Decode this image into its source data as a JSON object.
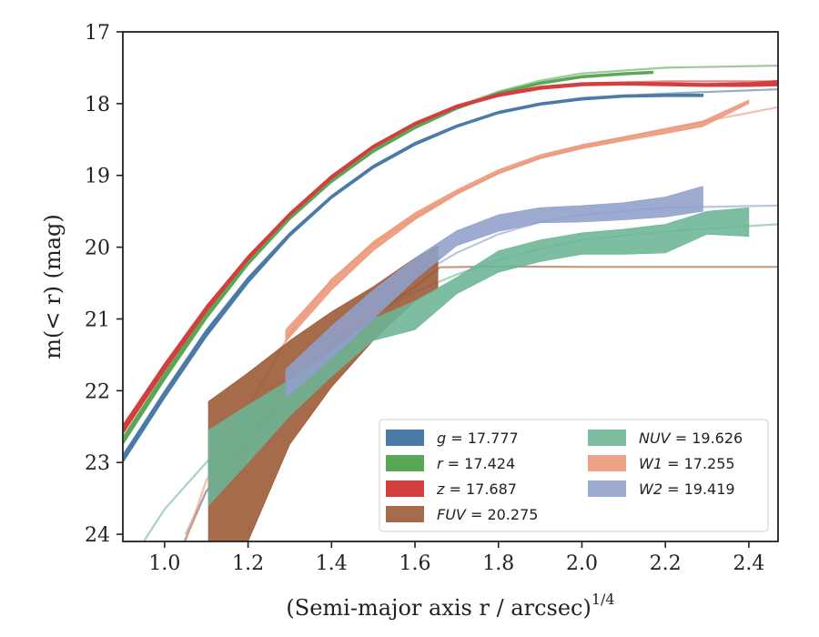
{
  "chart_data": {
    "type": "line",
    "xlabel": "(Semi-major axis r / arcsec)",
    "xlabel_sup": "1/4",
    "ylabel": "m(< r) (mag)",
    "xlim": [
      0.9,
      2.47
    ],
    "ylim": [
      24.1,
      17.0
    ],
    "y_inverted": true,
    "grid": false,
    "legend_position": "lower right",
    "xticks": [
      1.0,
      1.2,
      1.4,
      1.6,
      1.8,
      2.0,
      2.2,
      2.4
    ],
    "xtick_labels": [
      "1.0",
      "1.2",
      "1.4",
      "1.6",
      "1.8",
      "2.0",
      "2.2",
      "2.4"
    ],
    "yticks": [
      17,
      18,
      19,
      20,
      21,
      22,
      23,
      24
    ],
    "ytick_labels": [
      "17",
      "18",
      "19",
      "20",
      "21",
      "22",
      "23",
      "24"
    ],
    "series": [
      {
        "name": "g = 17.777",
        "legend_var": "g",
        "legend_value": "17.777",
        "color": "#4c7aa6",
        "band": [
          [
            0.9,
            23.0,
            22.9
          ],
          [
            1.0,
            22.1,
            22.0
          ],
          [
            1.1,
            21.25,
            21.15
          ],
          [
            1.2,
            20.5,
            20.42
          ],
          [
            1.3,
            19.85,
            19.8
          ],
          [
            1.4,
            19.32,
            19.28
          ],
          [
            1.5,
            18.9,
            18.86
          ],
          [
            1.6,
            18.58,
            18.54
          ],
          [
            1.7,
            18.33,
            18.3
          ],
          [
            1.8,
            18.14,
            18.11
          ],
          [
            1.9,
            18.02,
            17.99
          ],
          [
            2.0,
            17.95,
            17.92
          ],
          [
            2.1,
            17.91,
            17.88
          ],
          [
            2.2,
            17.9,
            17.87
          ],
          [
            2.29,
            17.9,
            17.87
          ]
        ],
        "model": [
          [
            0.9,
            22.9
          ],
          [
            1.0,
            22.02
          ],
          [
            1.1,
            21.2
          ],
          [
            1.2,
            20.47
          ],
          [
            1.3,
            19.83
          ],
          [
            1.4,
            19.3
          ],
          [
            1.5,
            18.88
          ],
          [
            1.6,
            18.56
          ],
          [
            1.7,
            18.32
          ],
          [
            1.8,
            18.13
          ],
          [
            1.9,
            18.0
          ],
          [
            2.0,
            17.92
          ],
          [
            2.2,
            17.86
          ],
          [
            2.47,
            17.8
          ]
        ]
      },
      {
        "name": "r = 17.424",
        "legend_var": "r",
        "legend_value": "17.424",
        "color": "#5aa757",
        "band": [
          [
            0.9,
            22.75,
            22.65
          ],
          [
            1.0,
            21.85,
            21.75
          ],
          [
            1.1,
            21.0,
            20.92
          ],
          [
            1.2,
            20.25,
            20.18
          ],
          [
            1.3,
            19.62,
            19.56
          ],
          [
            1.4,
            19.1,
            19.05
          ],
          [
            1.5,
            18.68,
            18.64
          ],
          [
            1.6,
            18.35,
            18.31
          ],
          [
            1.7,
            18.08,
            18.05
          ],
          [
            1.8,
            17.87,
            17.84
          ],
          [
            1.9,
            17.73,
            17.7
          ],
          [
            2.0,
            17.64,
            17.61
          ],
          [
            2.1,
            17.6,
            17.57
          ],
          [
            2.17,
            17.58,
            17.55
          ]
        ],
        "model": [
          [
            0.9,
            22.65
          ],
          [
            1.0,
            21.78
          ],
          [
            1.1,
            20.95
          ],
          [
            1.2,
            20.2
          ],
          [
            1.3,
            19.57
          ],
          [
            1.4,
            19.05
          ],
          [
            1.5,
            18.63
          ],
          [
            1.6,
            18.3
          ],
          [
            1.7,
            18.04
          ],
          [
            1.8,
            17.83
          ],
          [
            1.9,
            17.68
          ],
          [
            2.0,
            17.58
          ],
          [
            2.2,
            17.5
          ],
          [
            2.47,
            17.47
          ]
        ]
      },
      {
        "name": "z = 17.687",
        "legend_var": "z",
        "legend_value": "17.687",
        "color": "#d43e3e",
        "band": [
          [
            0.9,
            22.6,
            22.48
          ],
          [
            1.0,
            21.72,
            21.62
          ],
          [
            1.1,
            20.9,
            20.82
          ],
          [
            1.2,
            20.18,
            20.12
          ],
          [
            1.3,
            19.57,
            19.52
          ],
          [
            1.4,
            19.05,
            19.0
          ],
          [
            1.5,
            18.62,
            18.58
          ],
          [
            1.6,
            18.3,
            18.26
          ],
          [
            1.7,
            18.06,
            18.02
          ],
          [
            1.8,
            17.9,
            17.86
          ],
          [
            1.9,
            17.8,
            17.76
          ],
          [
            2.0,
            17.75,
            17.71
          ],
          [
            2.1,
            17.74,
            17.7
          ],
          [
            2.2,
            17.75,
            17.71
          ],
          [
            2.3,
            17.76,
            17.72
          ],
          [
            2.4,
            17.76,
            17.71
          ],
          [
            2.47,
            17.75,
            17.68
          ]
        ],
        "model": [
          [
            0.9,
            22.5
          ],
          [
            1.0,
            21.65
          ],
          [
            1.1,
            20.85
          ],
          [
            1.2,
            20.14
          ],
          [
            1.3,
            19.53
          ],
          [
            1.4,
            19.01
          ],
          [
            1.5,
            18.6
          ],
          [
            1.6,
            18.28
          ],
          [
            1.7,
            18.04
          ],
          [
            1.8,
            17.88
          ],
          [
            1.9,
            17.78
          ],
          [
            2.0,
            17.72
          ],
          [
            2.2,
            17.69
          ],
          [
            2.47,
            17.69
          ]
        ]
      },
      {
        "name": "FUV = 20.275",
        "legend_var": "FUV",
        "legend_value": "20.275",
        "color": "#9a5732",
        "band": [
          [
            1.105,
            24.2,
            22.15
          ],
          [
            1.2,
            24.1,
            21.75
          ],
          [
            1.3,
            22.75,
            21.3
          ],
          [
            1.4,
            21.95,
            20.9
          ],
          [
            1.5,
            21.3,
            20.55
          ],
          [
            1.6,
            20.75,
            20.15
          ],
          [
            1.655,
            20.58,
            19.98
          ]
        ],
        "model": [
          [
            1.04,
            24.2
          ],
          [
            1.1,
            23.4
          ],
          [
            1.2,
            22.7
          ],
          [
            1.3,
            22.0
          ],
          [
            1.4,
            21.4
          ],
          [
            1.5,
            20.95
          ],
          [
            1.6,
            20.55
          ],
          [
            1.66,
            20.28
          ],
          [
            1.8,
            20.27
          ],
          [
            2.0,
            20.275
          ],
          [
            2.47,
            20.275
          ]
        ]
      },
      {
        "name": "NUV = 19.626",
        "legend_var": "NUV",
        "legend_value": "19.626",
        "color": "#6bb596",
        "band": [
          [
            1.105,
            23.6,
            22.55
          ],
          [
            1.2,
            23.0,
            22.2
          ],
          [
            1.3,
            22.35,
            21.85
          ],
          [
            1.4,
            21.8,
            21.45
          ],
          [
            1.5,
            21.3,
            21.0
          ],
          [
            1.6,
            21.15,
            20.75
          ],
          [
            1.7,
            20.65,
            20.42
          ],
          [
            1.8,
            20.35,
            20.05
          ],
          [
            1.9,
            20.2,
            19.9
          ],
          [
            2.0,
            20.1,
            19.8
          ],
          [
            2.1,
            20.1,
            19.75
          ],
          [
            2.2,
            20.08,
            19.68
          ],
          [
            2.3,
            19.82,
            19.5
          ],
          [
            2.4,
            19.85,
            19.45
          ]
        ],
        "model": [
          [
            0.95,
            24.1
          ],
          [
            1.0,
            23.65
          ],
          [
            1.1,
            23.0
          ],
          [
            1.2,
            22.4
          ],
          [
            1.3,
            21.85
          ],
          [
            1.4,
            21.35
          ],
          [
            1.5,
            20.95
          ],
          [
            1.6,
            20.62
          ],
          [
            1.7,
            20.38
          ],
          [
            1.8,
            20.18
          ],
          [
            1.9,
            20.02
          ],
          [
            2.0,
            19.9
          ],
          [
            2.2,
            19.78
          ],
          [
            2.47,
            19.68
          ]
        ]
      },
      {
        "name": "W1 = 17.255",
        "legend_var": "W1",
        "legend_value": "17.255",
        "color": "#ec9677",
        "band": [
          [
            1.29,
            21.32,
            21.15
          ],
          [
            1.4,
            20.6,
            20.45
          ],
          [
            1.5,
            20.05,
            19.92
          ],
          [
            1.6,
            19.62,
            19.52
          ],
          [
            1.7,
            19.27,
            19.2
          ],
          [
            1.8,
            18.98,
            18.92
          ],
          [
            1.9,
            18.77,
            18.71
          ],
          [
            2.0,
            18.63,
            18.57
          ],
          [
            2.1,
            18.52,
            18.46
          ],
          [
            2.2,
            18.42,
            18.35
          ],
          [
            2.29,
            18.32,
            18.24
          ],
          [
            2.4,
            18.0,
            17.95
          ]
        ],
        "model": [
          [
            1.05,
            24.1
          ],
          [
            1.1,
            23.25
          ],
          [
            1.2,
            22.25
          ],
          [
            1.3,
            21.2
          ],
          [
            1.4,
            20.45
          ],
          [
            1.5,
            19.95
          ],
          [
            1.6,
            19.58
          ],
          [
            1.7,
            19.25
          ],
          [
            1.8,
            18.97
          ],
          [
            1.9,
            18.75
          ],
          [
            2.0,
            18.6
          ],
          [
            2.1,
            18.47
          ],
          [
            2.2,
            18.35
          ],
          [
            2.3,
            18.24
          ],
          [
            2.47,
            18.05
          ]
        ]
      },
      {
        "name": "W2 = 19.419",
        "legend_var": "W2",
        "legend_value": "19.419",
        "color": "#8f9fcb",
        "band": [
          [
            1.29,
            22.1,
            21.7
          ],
          [
            1.4,
            21.55,
            21.1
          ],
          [
            1.5,
            21.0,
            20.6
          ],
          [
            1.6,
            20.45,
            20.15
          ],
          [
            1.7,
            19.98,
            19.77
          ],
          [
            1.8,
            19.78,
            19.55
          ],
          [
            1.9,
            19.66,
            19.45
          ],
          [
            2.0,
            19.65,
            19.42
          ],
          [
            2.1,
            19.62,
            19.38
          ],
          [
            2.2,
            19.58,
            19.3
          ],
          [
            2.29,
            19.5,
            19.15
          ]
        ],
        "model": [
          [
            1.05,
            24.0
          ],
          [
            1.1,
            23.4
          ],
          [
            1.2,
            22.65
          ],
          [
            1.3,
            21.95
          ],
          [
            1.4,
            21.35
          ],
          [
            1.5,
            20.85
          ],
          [
            1.6,
            20.42
          ],
          [
            1.7,
            20.08
          ],
          [
            1.8,
            19.82
          ],
          [
            1.9,
            19.65
          ],
          [
            2.0,
            19.55
          ],
          [
            2.2,
            19.45
          ],
          [
            2.47,
            19.42
          ]
        ]
      }
    ]
  }
}
